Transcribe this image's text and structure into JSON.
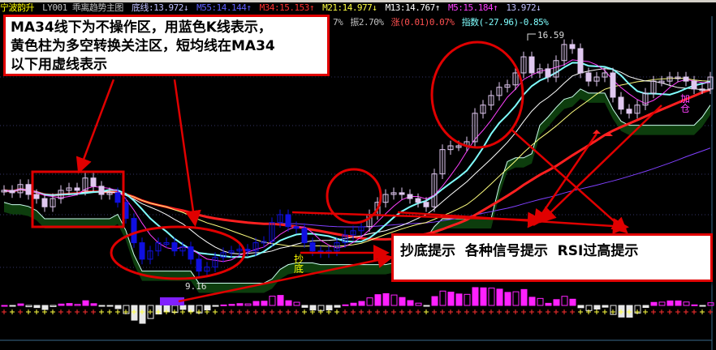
{
  "header": {
    "stock_name": "宁波韵升",
    "indicator_name": "LY001 乖离趋势主图",
    "bottom_line": "底线:13.972↓",
    "m55": "M55:14.144↑",
    "m34": "M34:15.153↑",
    "m21": "M21:14.977↓",
    "m13": "M13:14.767↑",
    "m5": "M5:15.184↑",
    "last": "13.972↓"
  },
  "stats": {
    "partial": "7%",
    "amplitude": "振2.70%",
    "change": "涨(0.01)0.07%",
    "index": "指数(-27.96)-0.85%"
  },
  "price_labels": {
    "high": "16.59",
    "low": "9.16"
  },
  "signals": {
    "bottom_buy": "抄底",
    "add_position": "加仓"
  },
  "annotations": {
    "note1_lines": [
      "MA34线下为不操作区，用蓝色K线表示，",
      "黄色柱为多空转换关注区，短均线在MA34",
      "以下用虚线表示"
    ],
    "note2": "抄底提示  各种信号提示  RSI过高提示"
  },
  "colors": {
    "up": "#e0c8f0",
    "bear_zone": "#1010e0",
    "ma5": "#ff40ff",
    "ma13": "#ffffff",
    "ma34": "#ffff80",
    "ma_long": "#ff2020",
    "band": "#0d3d0d",
    "annotation": "#e00000"
  },
  "chart_data": {
    "type": "candlestick",
    "closes": [
      11.93,
      11.86,
      12.1,
      11.81,
      11.69,
      11.45,
      11.69,
      11.93,
      12.0,
      11.93,
      12.29,
      12.05,
      11.81,
      11.86,
      11.58,
      11.11,
      10.4,
      9.92,
      10.16,
      10.4,
      10.4,
      10.16,
      10.28,
      9.92,
      9.57,
      9.69,
      9.97,
      10.11,
      10.16,
      10.21,
      10.16,
      10.4,
      10.44,
      10.99,
      11.22,
      10.87,
      10.82,
      10.4,
      10.16,
      10.11,
      10.16,
      10.4,
      10.63,
      10.75,
      10.87,
      11.22,
      11.58,
      11.81,
      11.86,
      11.81,
      11.69,
      11.58,
      11.45,
      12.41,
      13.12,
      13.23,
      13.23,
      13.35,
      14.18,
      14.42,
      14.7,
      14.94,
      15.01,
      15.36,
      15.83,
      15.36,
      15.48,
      15.24,
      15.72,
      16.19,
      16.07,
      15.36,
      15.12,
      15.24,
      15.36,
      14.65,
      14.3,
      14.18,
      14.42,
      14.77,
      15.12,
      15.12,
      15.24,
      15.24,
      15.12,
      14.89,
      14.89,
      15.24
    ],
    "blue_zone": [
      14,
      44
    ],
    "ylim": [
      9.16,
      16.59
    ]
  }
}
